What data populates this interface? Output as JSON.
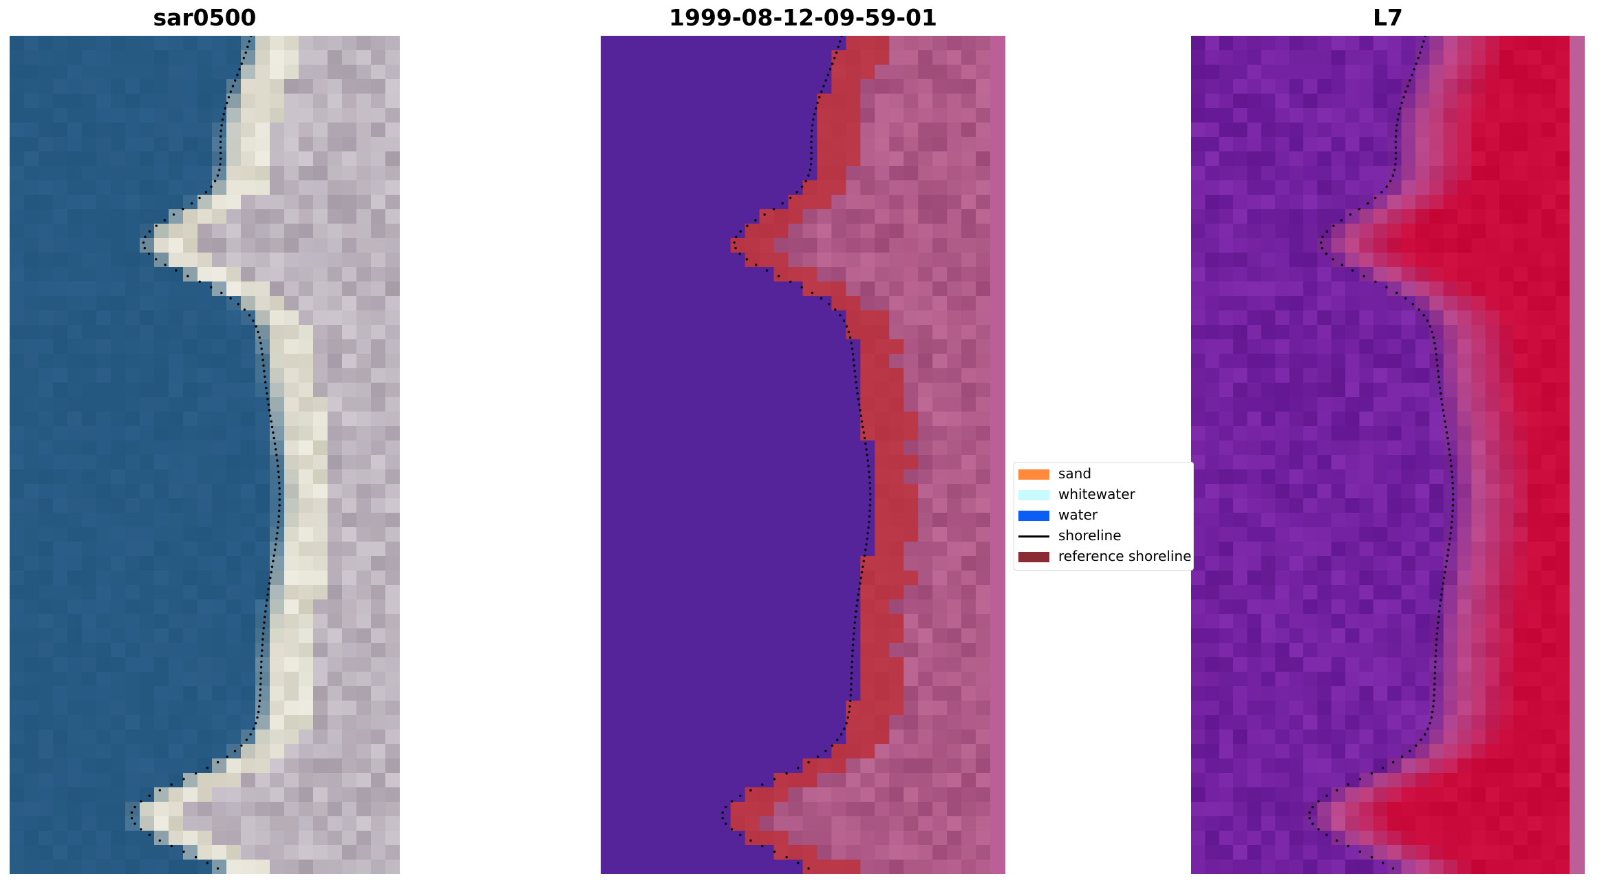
{
  "panels": [
    {
      "title": "sar0500"
    },
    {
      "title": "1999-08-12-09-59-01"
    },
    {
      "title": "L7"
    }
  ],
  "legend": {
    "items": [
      {
        "label": "sand",
        "color": "#ff8a3d",
        "kind": "patch"
      },
      {
        "label": "whitewater",
        "color": "#c7fbff",
        "kind": "patch"
      },
      {
        "label": "water",
        "color": "#0a5ef5",
        "kind": "patch"
      },
      {
        "label": "shoreline",
        "color": "#000000",
        "kind": "line"
      },
      {
        "label": "reference shoreline",
        "color": "#8b2c35",
        "kind": "patch"
      }
    ]
  },
  "colors": {
    "rgb_water": "#2a5e86",
    "rgb_sand": "#d9d6c6",
    "rgb_land": "#aea4b0",
    "class_water": "#55249a",
    "class_sand": "#b83645",
    "class_land": "#a4507e",
    "class_edge": "#bc5e98",
    "nir_water": "#6a1e98",
    "nir_mid": "#b8488c",
    "nir_land": "#c90a3a",
    "shoreline_dots": "#000000"
  }
}
